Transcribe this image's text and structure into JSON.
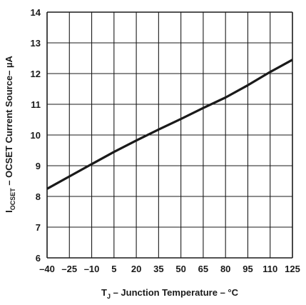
{
  "chart_data": {
    "type": "line",
    "xlabel": {
      "main": "T",
      "sub": "J",
      "rest": " – Junction Temperature – °C"
    },
    "ylabel": {
      "main": "I",
      "sub": "OCSET",
      "rest": " – OCSET Current Source– µA"
    },
    "x_ticks": [
      "–40",
      "–25",
      "–10",
      "5",
      "20",
      "35",
      "50",
      "65",
      "80",
      "95",
      "110",
      "125"
    ],
    "y_ticks": [
      "6",
      "7",
      "8",
      "9",
      "10",
      "11",
      "12",
      "13",
      "14"
    ],
    "xlim": [
      -40,
      125
    ],
    "ylim": [
      6,
      14
    ],
    "grid": true,
    "series": [
      {
        "x": [
          -40,
          -25,
          -10,
          5,
          20,
          35,
          50,
          65,
          80,
          95,
          110,
          125
        ],
        "values": [
          8.25,
          8.65,
          9.05,
          9.45,
          9.82,
          10.18,
          10.52,
          10.88,
          11.22,
          11.62,
          12.05,
          12.45
        ]
      }
    ]
  }
}
